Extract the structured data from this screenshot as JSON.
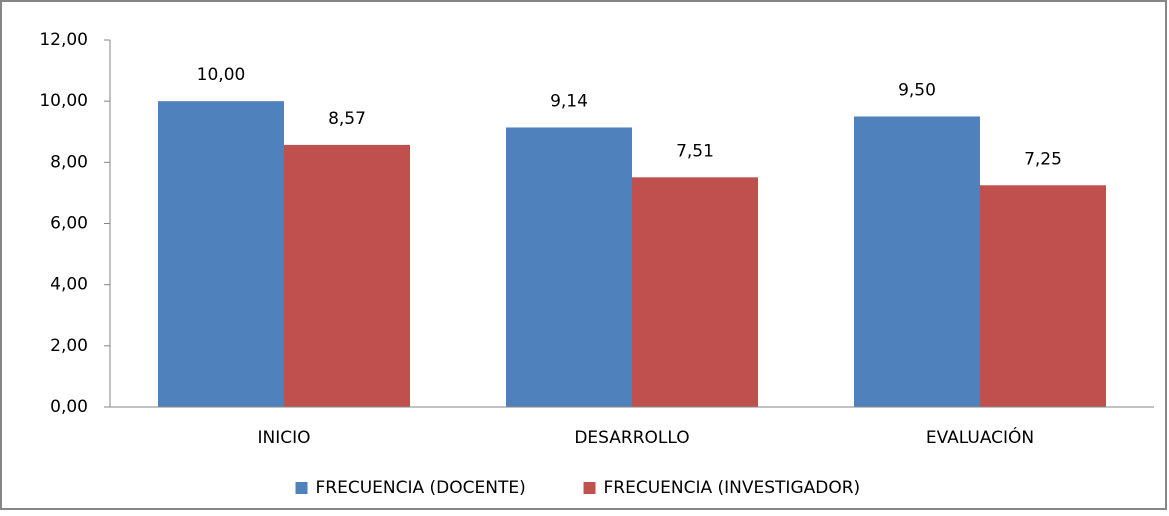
{
  "chart_data": {
    "type": "bar",
    "categories": [
      "INICIO",
      "DESARROLLO",
      "EVALUACIÓN"
    ],
    "series": [
      {
        "name": "FRECUENCIA (DOCENTE)",
        "color": "#4f81bd",
        "values": [
          10,
          9.14,
          9.5
        ],
        "value_labels": [
          "10,00",
          "9,14",
          "9,50"
        ]
      },
      {
        "name": "FRECUENCIA (INVESTIGADOR)",
        "color": "#c0504d",
        "values": [
          8.57,
          7.51,
          7.25
        ],
        "value_labels": [
          "8,57",
          "7,51",
          "7,25"
        ]
      }
    ],
    "ylim": [
      0,
      12
    ],
    "yticks": [
      {
        "value": 0,
        "label": "0,00"
      },
      {
        "value": 2,
        "label": "2,00"
      },
      {
        "value": 4,
        "label": "4,00"
      },
      {
        "value": 6,
        "label": "6,00"
      },
      {
        "value": 8,
        "label": "8,00"
      },
      {
        "value": 10,
        "label": "10,00"
      },
      {
        "value": 12,
        "label": "12,00"
      }
    ],
    "grid": false,
    "legend": "bottom"
  }
}
